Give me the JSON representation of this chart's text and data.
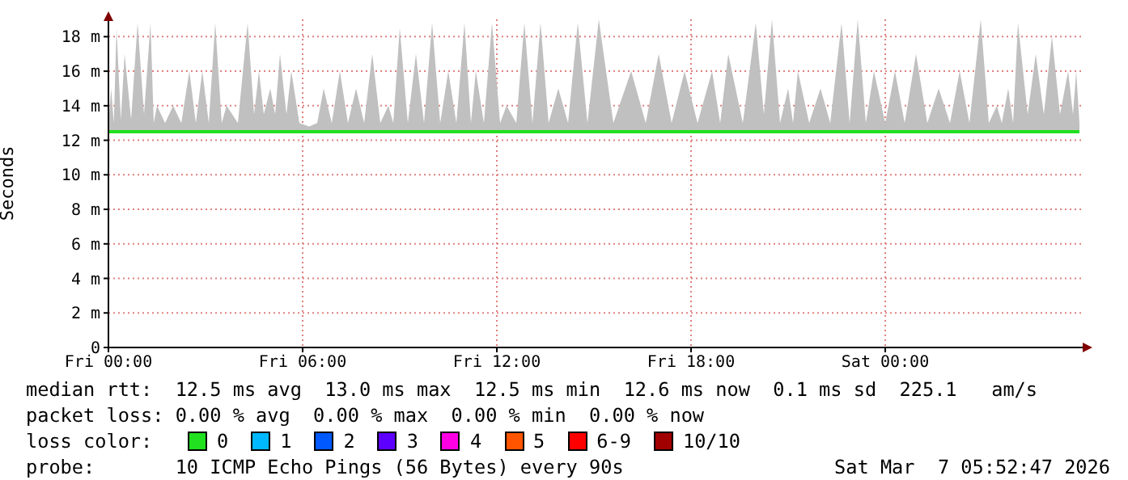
{
  "chart_data": {
    "type": "line",
    "ylabel": "Seconds",
    "xlim": [
      "2026-03-06T00:00",
      "2026-03-07T06:06"
    ],
    "xticks": [
      {
        "value": "2026-03-06T00:00",
        "label": "Fri 00:00"
      },
      {
        "value": "2026-03-06T06:00",
        "label": "Fri 06:00"
      },
      {
        "value": "2026-03-06T12:00",
        "label": "Fri 12:00"
      },
      {
        "value": "2026-03-06T18:00",
        "label": "Fri 18:00"
      },
      {
        "value": "2026-03-07T00:00",
        "label": "Sat 00:00"
      }
    ],
    "ylim": [
      0,
      19
    ],
    "yticks": [
      {
        "value": 0,
        "label": "0"
      },
      {
        "value": 2,
        "label": "2 m"
      },
      {
        "value": 4,
        "label": "4 m"
      },
      {
        "value": 6,
        "label": "6 m"
      },
      {
        "value": 8,
        "label": "8 m"
      },
      {
        "value": 10,
        "label": "10 m"
      },
      {
        "value": 12,
        "label": "12 m"
      },
      {
        "value": 14,
        "label": "14 m"
      },
      {
        "value": 16,
        "label": "16 m"
      },
      {
        "value": 18,
        "label": "18 m"
      }
    ],
    "grid": true,
    "legend": "bottom",
    "marker": "none",
    "x": [
      "2026-03-06T00:00",
      "2026-03-06T00:05",
      "2026-03-06T00:10",
      "2026-03-06T00:15",
      "2026-03-06T00:23",
      "2026-03-06T00:30",
      "2026-03-06T00:42",
      "2026-03-06T00:54",
      "2026-03-06T01:06",
      "2026-03-06T01:18",
      "2026-03-06T01:24",
      "2026-03-06T01:30",
      "2026-03-06T01:45",
      "2026-03-06T02:00",
      "2026-03-06T02:15",
      "2026-03-06T02:30",
      "2026-03-06T02:42",
      "2026-03-06T02:54",
      "2026-03-06T03:06",
      "2026-03-06T03:18",
      "2026-03-06T03:30",
      "2026-03-06T03:39",
      "2026-03-06T04:00",
      "2026-03-06T04:18",
      "2026-03-06T04:30",
      "2026-03-06T04:39",
      "2026-03-06T04:48",
      "2026-03-06T05:00",
      "2026-03-06T05:09",
      "2026-03-06T05:18",
      "2026-03-06T05:30",
      "2026-03-06T05:39",
      "2026-03-06T05:54",
      "2026-03-06T06:12",
      "2026-03-06T06:27",
      "2026-03-06T06:39",
      "2026-03-06T06:54",
      "2026-03-06T07:09",
      "2026-03-06T07:24",
      "2026-03-06T07:39",
      "2026-03-06T07:54",
      "2026-03-06T08:09",
      "2026-03-06T08:24",
      "2026-03-06T08:39",
      "2026-03-06T08:48",
      "2026-03-06T09:00",
      "2026-03-06T09:15",
      "2026-03-06T09:30",
      "2026-03-06T09:45",
      "2026-03-06T10:00",
      "2026-03-06T10:15",
      "2026-03-06T10:30",
      "2026-03-06T10:45",
      "2026-03-06T11:00",
      "2026-03-06T11:12",
      "2026-03-06T11:21",
      "2026-03-06T11:36",
      "2026-03-06T11:51",
      "2026-03-06T12:06",
      "2026-03-06T12:18",
      "2026-03-06T12:36",
      "2026-03-06T12:51",
      "2026-03-06T13:06",
      "2026-03-06T13:21",
      "2026-03-06T13:36",
      "2026-03-06T13:54",
      "2026-03-06T14:12",
      "2026-03-06T14:30",
      "2026-03-06T14:48",
      "2026-03-06T15:09",
      "2026-03-06T15:36",
      "2026-03-06T16:09",
      "2026-03-06T16:36",
      "2026-03-06T17:00",
      "2026-03-06T17:24",
      "2026-03-06T17:48",
      "2026-03-06T18:12",
      "2026-03-06T18:39",
      "2026-03-06T18:54",
      "2026-03-06T19:09",
      "2026-03-06T19:36",
      "2026-03-06T20:00",
      "2026-03-06T20:15",
      "2026-03-06T20:30",
      "2026-03-06T20:45",
      "2026-03-06T21:00",
      "2026-03-06T21:09",
      "2026-03-06T21:18",
      "2026-03-06T21:39",
      "2026-03-06T22:00",
      "2026-03-06T22:18",
      "2026-03-06T22:39",
      "2026-03-06T22:54",
      "2026-03-06T23:09",
      "2026-03-06T23:24",
      "2026-03-06T23:39",
      "2026-03-07T00:00",
      "2026-03-07T00:18",
      "2026-03-07T00:36",
      "2026-03-07T00:57",
      "2026-03-07T01:18",
      "2026-03-07T01:39",
      "2026-03-07T02:00",
      "2026-03-07T02:18",
      "2026-03-07T02:36",
      "2026-03-07T02:57",
      "2026-03-07T03:12",
      "2026-03-07T03:27",
      "2026-03-07T03:36",
      "2026-03-07T03:48",
      "2026-03-07T03:57",
      "2026-03-07T04:06",
      "2026-03-07T04:24",
      "2026-03-07T04:39",
      "2026-03-07T04:54",
      "2026-03-07T05:09",
      "2026-03-07T05:24",
      "2026-03-07T05:39",
      "2026-03-07T05:48",
      "2026-03-07T05:54",
      "2026-03-07T06:00"
    ],
    "series": [
      {
        "name": "0",
        "color": "#20e020",
        "values": [
          12.5,
          12.5,
          12.5,
          12.5,
          12.5,
          12.5,
          12.5,
          12.5,
          12.5,
          12.5,
          12.5,
          12.5,
          12.5,
          12.5,
          12.5,
          12.5,
          12.5,
          12.5,
          12.5,
          12.5,
          12.5,
          12.5,
          12.5,
          12.5,
          12.5,
          12.5,
          12.5,
          12.5,
          12.5,
          12.5,
          12.5,
          12.5,
          12.5,
          12.5,
          12.5,
          12.5,
          12.5,
          12.5,
          12.5,
          12.5,
          12.5,
          12.5,
          12.5,
          12.5,
          12.5,
          12.5,
          12.5,
          12.5,
          12.5,
          12.5,
          12.5,
          12.5,
          12.5,
          12.5,
          12.5,
          12.5,
          12.5,
          12.5,
          12.5,
          12.5,
          12.5,
          12.5,
          12.5,
          12.5,
          12.5,
          12.5,
          12.5,
          12.5,
          12.5,
          12.5,
          12.5,
          12.5,
          12.5,
          12.5,
          12.5,
          12.5,
          12.5,
          12.5,
          12.5,
          12.5,
          12.5,
          12.5,
          12.5,
          12.5,
          12.5,
          12.5,
          12.5,
          12.5,
          12.5,
          12.5,
          12.5,
          12.5,
          12.5,
          12.5,
          12.5,
          12.5,
          12.5,
          12.5,
          12.5,
          12.5,
          12.5,
          12.5,
          12.5,
          12.5,
          12.5,
          12.5,
          12.5,
          12.5,
          12.5,
          12.5,
          12.5,
          12.5,
          12.5,
          12.5,
          12.5,
          12.5,
          12.5,
          12.5,
          12.5,
          12.5,
          12.5
        ],
        "lower": [
          12.4,
          12.4,
          12.4,
          12.4,
          12.4,
          12.4,
          12.4,
          12.4,
          12.4,
          12.4,
          12.4,
          12.4,
          12.4,
          12.4,
          12.4,
          12.4,
          12.4,
          12.4,
          12.4,
          12.4,
          12.4,
          12.4,
          12.4,
          12.4,
          12.4,
          12.4,
          12.4,
          12.4,
          12.4,
          12.4,
          12.4,
          12.4,
          12.4,
          12.4,
          12.4,
          12.4,
          12.4,
          12.4,
          12.4,
          12.4,
          12.4,
          12.4,
          12.4,
          12.4,
          12.4,
          12.4,
          12.4,
          12.4,
          12.4,
          12.4,
          12.4,
          12.4,
          12.4,
          12.4,
          12.4,
          12.4,
          12.4,
          12.4,
          12.4,
          12.4,
          12.4,
          12.4,
          12.4,
          12.4,
          12.4,
          12.4,
          12.4,
          12.4,
          12.4,
          12.4,
          12.4,
          12.4,
          12.4,
          12.4,
          12.4,
          12.4,
          12.4,
          12.4,
          12.4,
          12.4,
          12.4,
          12.4,
          12.4,
          12.4,
          12.4,
          12.4,
          12.4,
          12.4,
          12.4,
          12.4,
          12.4,
          12.4,
          12.4,
          12.4,
          12.4,
          12.4,
          12.4,
          12.4,
          12.4,
          12.4,
          12.4,
          12.4,
          12.4,
          12.4,
          12.4,
          12.4,
          12.4,
          12.4,
          12.4,
          12.4,
          12.4,
          12.4,
          12.4,
          12.4,
          12.4,
          12.4,
          12.4,
          12.4,
          12.4,
          12.4,
          12.4
        ],
        "upper": [
          13,
          15,
          13,
          18.5,
          13.2,
          17,
          13.2,
          18.8,
          13.5,
          18.8,
          13,
          14,
          13,
          14,
          13,
          16,
          13,
          16,
          13,
          18.8,
          13,
          14,
          13,
          18.8,
          13.5,
          16,
          13.5,
          15,
          13.5,
          17,
          13.5,
          16,
          13,
          12.8,
          13,
          15,
          13,
          16,
          13,
          15,
          13,
          17,
          13,
          14,
          13,
          18.5,
          13,
          17,
          13,
          18.8,
          13,
          16,
          13,
          18.8,
          13,
          16,
          13,
          18.8,
          13,
          14,
          13,
          18.8,
          13,
          18.8,
          13,
          15,
          13,
          18.8,
          13,
          19,
          13,
          16,
          13,
          17,
          13,
          16,
          13,
          16,
          13,
          17,
          13,
          18.8,
          13.5,
          19,
          13,
          15,
          13,
          16,
          13,
          15,
          13,
          18.8,
          13,
          19,
          13,
          16,
          13,
          16,
          13,
          17,
          13,
          15,
          13,
          16,
          13,
          19,
          13,
          14,
          13,
          15,
          13,
          18.8,
          13.5,
          17,
          13.5,
          18,
          13.5,
          16,
          13.5,
          16,
          13
        ]
      },
      {
        "name": "1",
        "color": "#00b8ff",
        "values": [
          null,
          null,
          null,
          null,
          null,
          null,
          null,
          null,
          null,
          null,
          null,
          null,
          null,
          null,
          null,
          null,
          null,
          null,
          null,
          null,
          null,
          null,
          null,
          null,
          null,
          null,
          null,
          null,
          null,
          null,
          null,
          null,
          null,
          null,
          null,
          null,
          null,
          null,
          null,
          null,
          null,
          null,
          null,
          null,
          null,
          null,
          null,
          null,
          null,
          null,
          null,
          null,
          null,
          null,
          null,
          null,
          null,
          null,
          null,
          null,
          null,
          null,
          null,
          null,
          null,
          null,
          null,
          null,
          null,
          null,
          null,
          null,
          null,
          null,
          null,
          null,
          null,
          null,
          null,
          null,
          null,
          null,
          null,
          null,
          null,
          null,
          null,
          null,
          null,
          null,
          null,
          null,
          null,
          null,
          null,
          null,
          null,
          null,
          null,
          null,
          null,
          null,
          null,
          null,
          null,
          null,
          null,
          null,
          null,
          null,
          null,
          null,
          null,
          null,
          null,
          null,
          null,
          null,
          null,
          null,
          null
        ]
      },
      {
        "name": "2",
        "color": "#0059ff",
        "values": [
          null,
          null,
          null,
          null,
          null,
          null,
          null,
          null,
          null,
          null,
          null,
          null,
          null,
          null,
          null,
          null,
          null,
          null,
          null,
          null,
          null,
          null,
          null,
          null,
          null,
          null,
          null,
          null,
          null,
          null,
          null,
          null,
          null,
          null,
          null,
          null,
          null,
          null,
          null,
          null,
          null,
          null,
          null,
          null,
          null,
          null,
          null,
          null,
          null,
          null,
          null,
          null,
          null,
          null,
          null,
          null,
          null,
          null,
          null,
          null,
          null,
          null,
          null,
          null,
          null,
          null,
          null,
          null,
          null,
          null,
          null,
          null,
          null,
          null,
          null,
          null,
          null,
          null,
          null,
          null,
          null,
          null,
          null,
          null,
          null,
          null,
          null,
          null,
          null,
          null,
          null,
          null,
          null,
          null,
          null,
          null,
          null,
          null,
          null,
          null,
          null,
          null,
          null,
          null,
          null,
          null,
          null,
          null,
          null,
          null,
          null,
          null,
          null,
          null,
          null,
          null,
          null,
          null,
          null,
          null,
          null
        ]
      },
      {
        "name": "3",
        "color": "#5e00ff",
        "values": [
          null,
          null,
          null,
          null,
          null,
          null,
          null,
          null,
          null,
          null,
          null,
          null,
          null,
          null,
          null,
          null,
          null,
          null,
          null,
          null,
          null,
          null,
          null,
          null,
          null,
          null,
          null,
          null,
          null,
          null,
          null,
          null,
          null,
          null,
          null,
          null,
          null,
          null,
          null,
          null,
          null,
          null,
          null,
          null,
          null,
          null,
          null,
          null,
          null,
          null,
          null,
          null,
          null,
          null,
          null,
          null,
          null,
          null,
          null,
          null,
          null,
          null,
          null,
          null,
          null,
          null,
          null,
          null,
          null,
          null,
          null,
          null,
          null,
          null,
          null,
          null,
          null,
          null,
          null,
          null,
          null,
          null,
          null,
          null,
          null,
          null,
          null,
          null,
          null,
          null,
          null,
          null,
          null,
          null,
          null,
          null,
          null,
          null,
          null,
          null,
          null,
          null,
          null,
          null,
          null,
          null,
          null,
          null,
          null,
          null,
          null,
          null,
          null,
          null,
          null,
          null,
          null,
          null,
          null,
          null,
          null
        ]
      },
      {
        "name": "4",
        "color": "#ff00e5",
        "values": [
          null,
          null,
          null,
          null,
          null,
          null,
          null,
          null,
          null,
          null,
          null,
          null,
          null,
          null,
          null,
          null,
          null,
          null,
          null,
          null,
          null,
          null,
          null,
          null,
          null,
          null,
          null,
          null,
          null,
          null,
          null,
          null,
          null,
          null,
          null,
          null,
          null,
          null,
          null,
          null,
          null,
          null,
          null,
          null,
          null,
          null,
          null,
          null,
          null,
          null,
          null,
          null,
          null,
          null,
          null,
          null,
          null,
          null,
          null,
          null,
          null,
          null,
          null,
          null,
          null,
          null,
          null,
          null,
          null,
          null,
          null,
          null,
          null,
          null,
          null,
          null,
          null,
          null,
          null,
          null,
          null,
          null,
          null,
          null,
          null,
          null,
          null,
          null,
          null,
          null,
          null,
          null,
          null,
          null,
          null,
          null,
          null,
          null,
          null,
          null,
          null,
          null,
          null,
          null,
          null,
          null,
          null,
          null,
          null,
          null,
          null,
          null,
          null,
          null,
          null,
          null,
          null,
          null,
          null,
          null,
          null
        ]
      },
      {
        "name": "5",
        "color": "#ff5500",
        "values": [
          null,
          null,
          null,
          null,
          null,
          null,
          null,
          null,
          null,
          null,
          null,
          null,
          null,
          null,
          null,
          null,
          null,
          null,
          null,
          null,
          null,
          null,
          null,
          null,
          null,
          null,
          null,
          null,
          null,
          null,
          null,
          null,
          null,
          null,
          null,
          null,
          null,
          null,
          null,
          null,
          null,
          null,
          null,
          null,
          null,
          null,
          null,
          null,
          null,
          null,
          null,
          null,
          null,
          null,
          null,
          null,
          null,
          null,
          null,
          null,
          null,
          null,
          null,
          null,
          null,
          null,
          null,
          null,
          null,
          null,
          null,
          null,
          null,
          null,
          null,
          null,
          null,
          null,
          null,
          null,
          null,
          null,
          null,
          null,
          null,
          null,
          null,
          null,
          null,
          null,
          null,
          null,
          null,
          null,
          null,
          null,
          null,
          null,
          null,
          null,
          null,
          null,
          null,
          null,
          null,
          null,
          null,
          null,
          null,
          null,
          null,
          null,
          null,
          null,
          null,
          null,
          null,
          null,
          null,
          null,
          null
        ]
      },
      {
        "name": "6-9",
        "color": "#ff0000",
        "values": [
          null,
          null,
          null,
          null,
          null,
          null,
          null,
          null,
          null,
          null,
          null,
          null,
          null,
          null,
          null,
          null,
          null,
          null,
          null,
          null,
          null,
          null,
          null,
          null,
          null,
          null,
          null,
          null,
          null,
          null,
          null,
          null,
          null,
          null,
          null,
          null,
          null,
          null,
          null,
          null,
          null,
          null,
          null,
          null,
          null,
          null,
          null,
          null,
          null,
          null,
          null,
          null,
          null,
          null,
          null,
          null,
          null,
          null,
          null,
          null,
          null,
          null,
          null,
          null,
          null,
          null,
          null,
          null,
          null,
          null,
          null,
          null,
          null,
          null,
          null,
          null,
          null,
          null,
          null,
          null,
          null,
          null,
          null,
          null,
          null,
          null,
          null,
          null,
          null,
          null,
          null,
          null,
          null,
          null,
          null,
          null,
          null,
          null,
          null,
          null,
          null,
          null,
          null,
          null,
          null,
          null,
          null,
          null,
          null,
          null,
          null,
          null,
          null,
          null,
          null,
          null,
          null,
          null,
          null,
          null,
          null
        ]
      },
      {
        "name": "10/10",
        "color": "#a10000",
        "values": [
          null,
          null,
          null,
          null,
          null,
          null,
          null,
          null,
          null,
          null,
          null,
          null,
          null,
          null,
          null,
          null,
          null,
          null,
          null,
          null,
          null,
          null,
          null,
          null,
          null,
          null,
          null,
          null,
          null,
          null,
          null,
          null,
          null,
          null,
          null,
          null,
          null,
          null,
          null,
          null,
          null,
          null,
          null,
          null,
          null,
          null,
          null,
          null,
          null,
          null,
          null,
          null,
          null,
          null,
          null,
          null,
          null,
          null,
          null,
          null,
          null,
          null,
          null,
          null,
          null,
          null,
          null,
          null,
          null,
          null,
          null,
          null,
          null,
          null,
          null,
          null,
          null,
          null,
          null,
          null,
          null,
          null,
          null,
          null,
          null,
          null,
          null,
          null,
          null,
          null,
          null,
          null,
          null,
          null,
          null,
          null,
          null,
          null,
          null,
          null,
          null,
          null,
          null,
          null,
          null,
          null,
          null,
          null,
          null,
          null,
          null,
          null,
          null,
          null,
          null,
          null,
          null,
          null,
          null,
          null,
          null
        ]
      }
    ],
    "annotations": [
      "median rtt:  12.5 ms avg  13.0 ms max  12.5 ms min  12.6 ms now  0.1 ms sd  225.1   am/s",
      "packet loss: 0.00 % avg  0.00 % max  0.00 % min  0.00 % now",
      "loss color:",
      "probe:       10 ICMP Echo Pings (56 Bytes) every 90s",
      "Sat Mar  7 05:52:47 2026"
    ]
  }
}
